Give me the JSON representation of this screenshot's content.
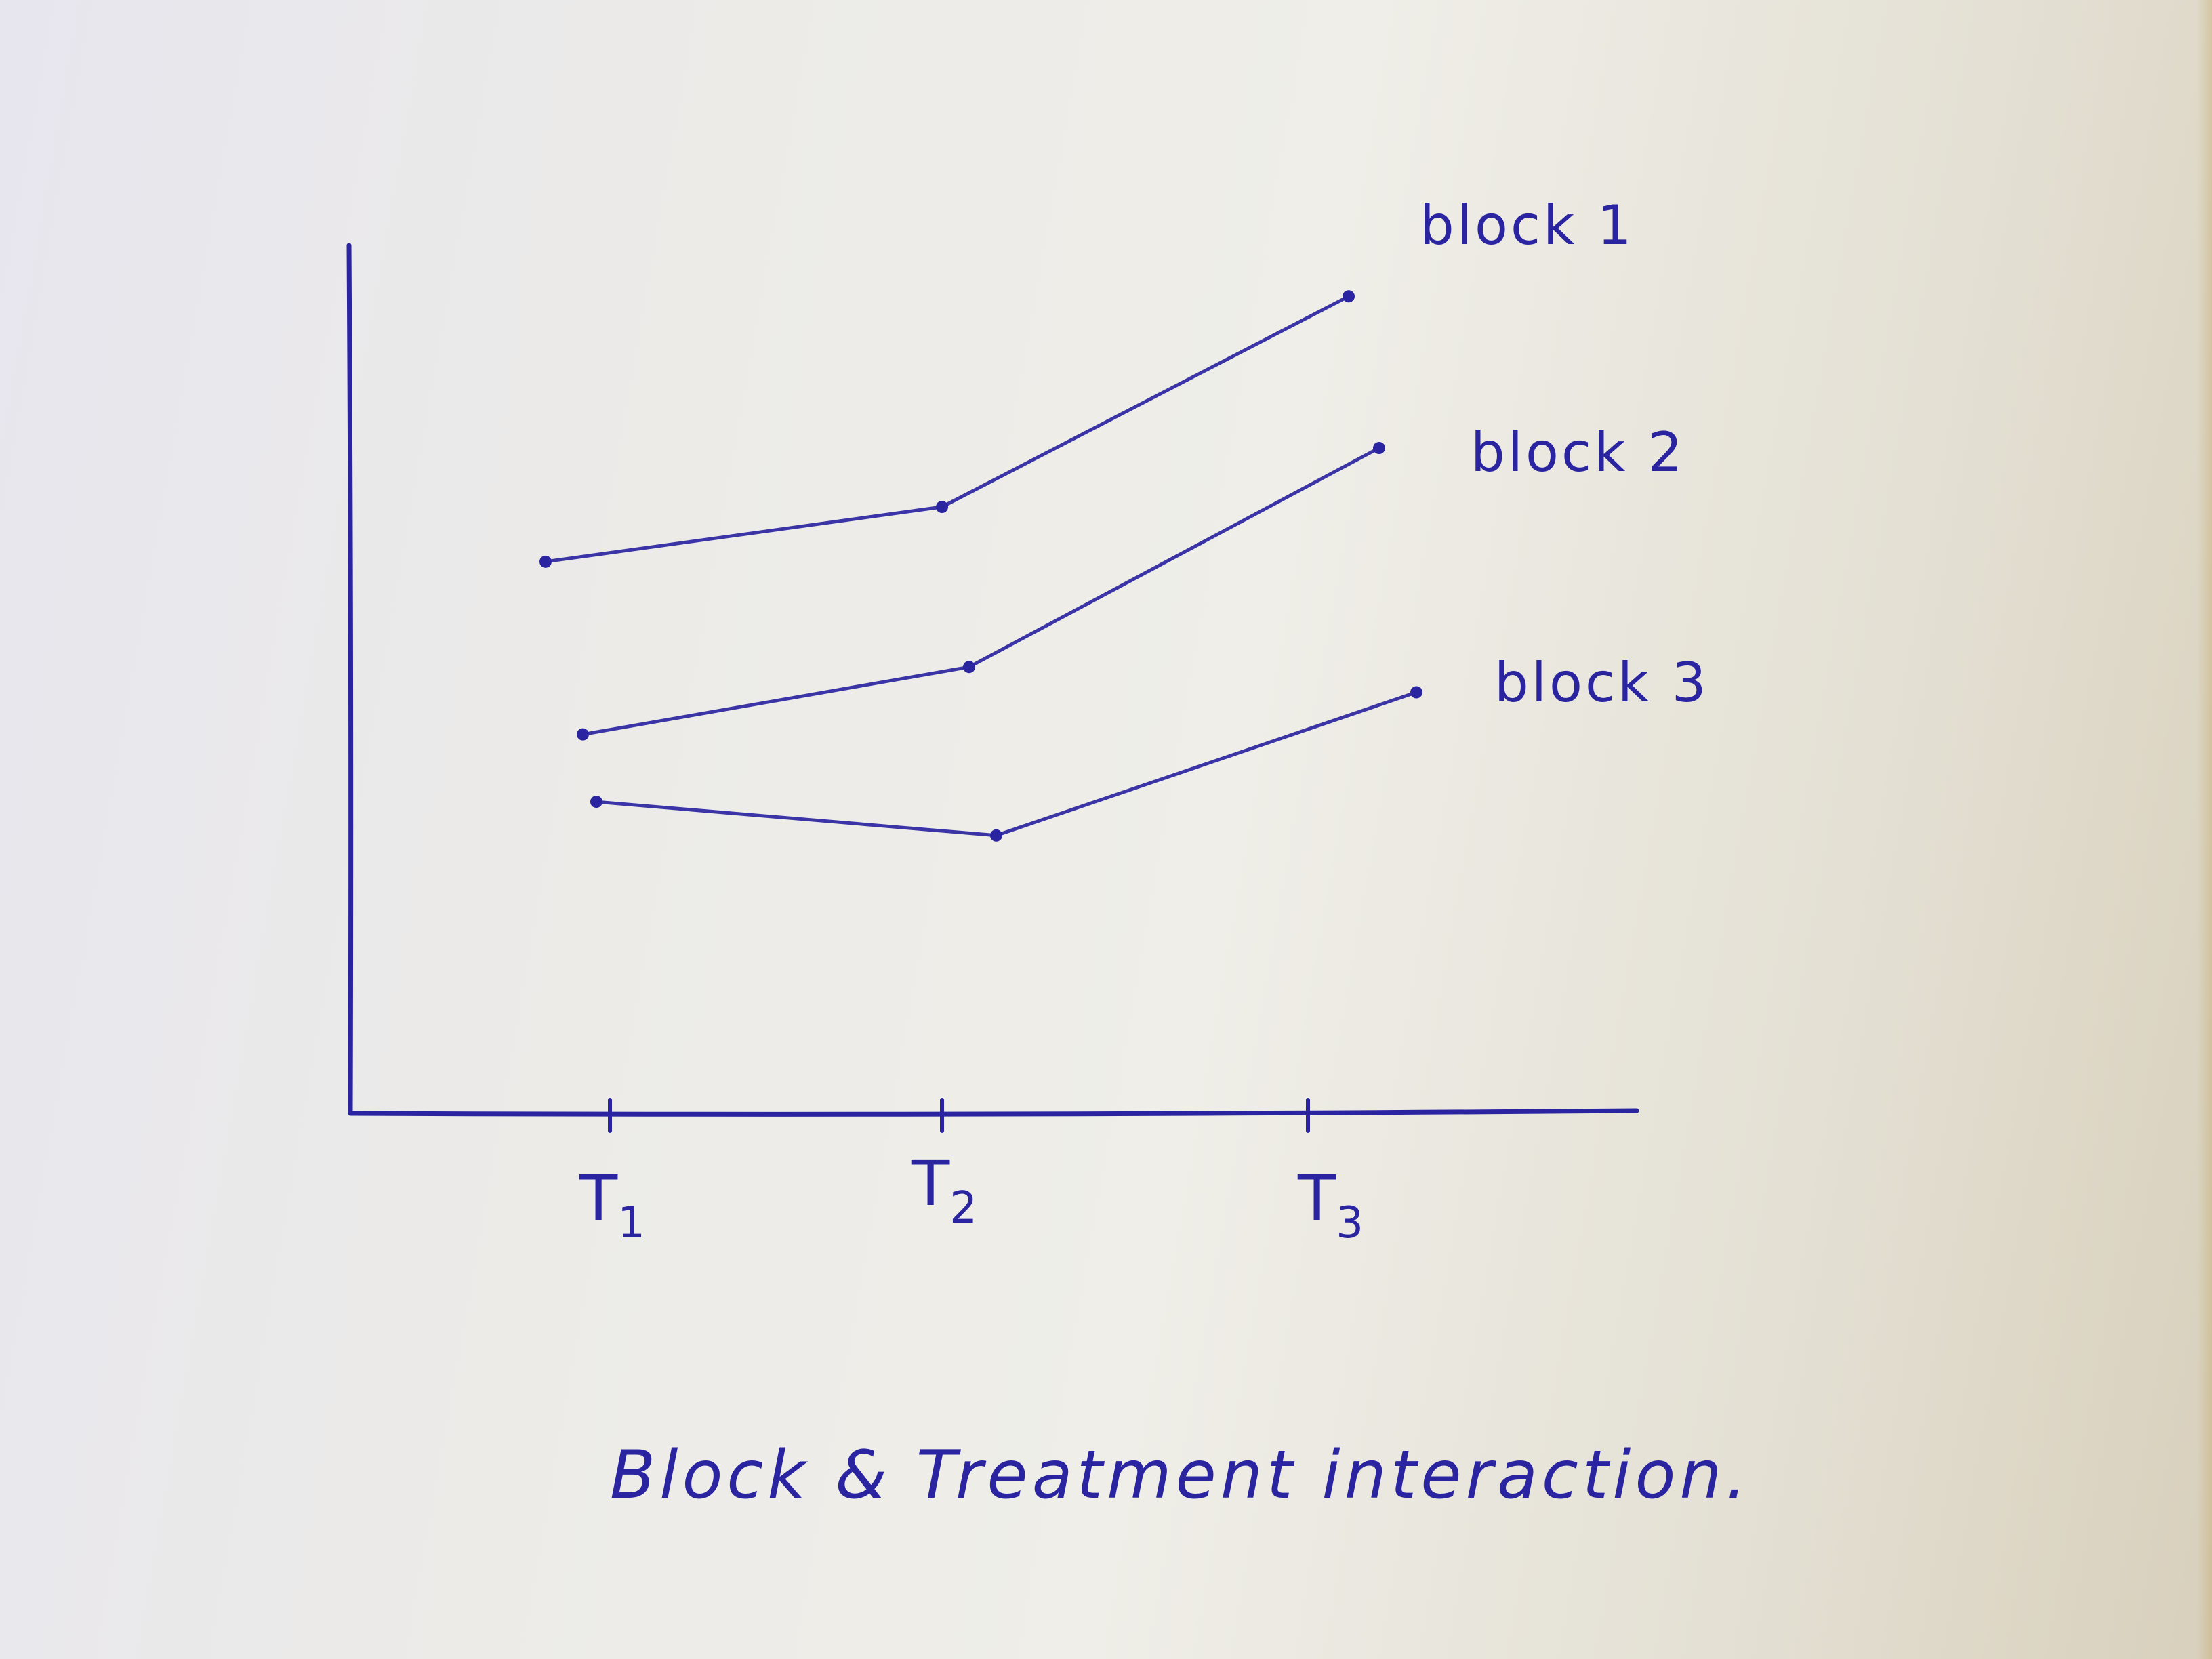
{
  "colors": {
    "ink": "#2a24a0",
    "paper": "#ecebe8"
  },
  "chart_data": {
    "type": "line",
    "title": "Block & Treatment interaction.",
    "xlabel": "",
    "ylabel": "",
    "categories": [
      "T1",
      "T2",
      "T3"
    ],
    "tick_labels": [
      {
        "base": "T",
        "sub": "1"
      },
      {
        "base": "T",
        "sub": "2"
      },
      {
        "base": "T",
        "sub": "3"
      }
    ],
    "yticks": false,
    "grid": false,
    "legend": "inline labels at line ends (right)",
    "ylim": [
      0,
      10
    ],
    "series": [
      {
        "name": "block 1",
        "values": [
          6.55,
          7.2,
          9.7
        ]
      },
      {
        "name": "block 2",
        "values": [
          4.5,
          5.3,
          7.9
        ]
      },
      {
        "name": "block 3",
        "values": [
          3.7,
          3.3,
          5.0
        ]
      }
    ],
    "labels": [
      {
        "text": "block 1",
        "series": 0
      },
      {
        "text": "block 2",
        "series": 1
      },
      {
        "text": "block 3",
        "series": 2
      }
    ]
  }
}
